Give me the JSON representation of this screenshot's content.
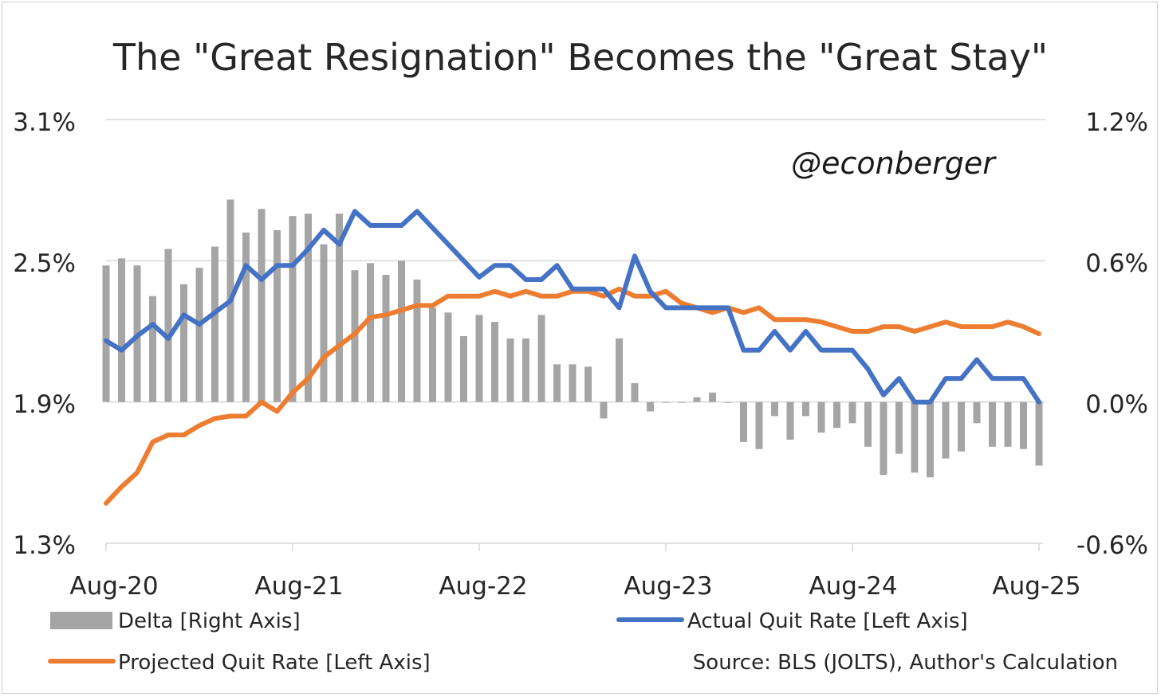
{
  "chart_data": {
    "type": "bar+line",
    "title": "The \"Great Resignation\" Becomes the \"Great Stay\"",
    "watermark": "@econberger",
    "source": "Source: BLS (JOLTS), Author's Calculation",
    "x_tick_labels": [
      "Aug-20",
      "Aug-21",
      "Aug-22",
      "Aug-23",
      "Aug-24",
      "Aug-25"
    ],
    "left_axis": {
      "ylim": [
        1.3,
        3.1
      ],
      "tick_labels": [
        "3.1%",
        "2.5%",
        "1.9%",
        "1.3%"
      ]
    },
    "right_axis": {
      "ylim": [
        -0.6,
        1.2
      ],
      "tick_labels": [
        "1.2%",
        "0.6%",
        "0.0%",
        "-0.6%"
      ]
    },
    "categories": [
      "Aug-20",
      "Sep-20",
      "Oct-20",
      "Nov-20",
      "Dec-20",
      "Jan-21",
      "Feb-21",
      "Mar-21",
      "Apr-21",
      "May-21",
      "Jun-21",
      "Jul-21",
      "Aug-21",
      "Sep-21",
      "Oct-21",
      "Nov-21",
      "Dec-21",
      "Jan-22",
      "Feb-22",
      "Mar-22",
      "Apr-22",
      "May-22",
      "Jun-22",
      "Jul-22",
      "Aug-22",
      "Sep-22",
      "Oct-22",
      "Nov-22",
      "Dec-22",
      "Jan-23",
      "Feb-23",
      "Mar-23",
      "Apr-23",
      "May-23",
      "Jun-23",
      "Jul-23",
      "Aug-23",
      "Sep-23",
      "Oct-23",
      "Nov-23",
      "Dec-23",
      "Jan-24",
      "Feb-24",
      "Mar-24",
      "Apr-24",
      "May-24",
      "Jun-24",
      "Jul-24",
      "Aug-24",
      "Sep-24",
      "Oct-24",
      "Nov-24",
      "Dec-24",
      "Jan-25",
      "Feb-25",
      "Mar-25",
      "Apr-25",
      "May-25",
      "Jun-25",
      "Jul-25",
      "Aug-25"
    ],
    "series": [
      {
        "name": "Delta [Right Axis]",
        "axis": "right",
        "kind": "bar",
        "color": "#a5a5a5",
        "values": [
          0.58,
          0.61,
          0.58,
          0.45,
          0.65,
          0.5,
          0.57,
          0.66,
          0.86,
          0.72,
          0.82,
          0.73,
          0.79,
          0.8,
          0.67,
          0.8,
          0.56,
          0.59,
          0.54,
          0.6,
          0.52,
          0.4,
          0.38,
          0.28,
          0.37,
          0.34,
          0.27,
          0.27,
          0.37,
          0.16,
          0.16,
          0.15,
          -0.07,
          0.27,
          0.08,
          -0.04,
          0.0,
          0.0,
          0.02,
          0.04,
          0.0,
          -0.17,
          -0.2,
          -0.06,
          -0.16,
          -0.06,
          -0.13,
          -0.11,
          -0.09,
          -0.19,
          -0.31,
          -0.22,
          -0.3,
          -0.32,
          -0.24,
          -0.21,
          -0.09,
          -0.19,
          -0.19,
          -0.2,
          -0.27
        ]
      },
      {
        "name": "Actual Quit Rate [Left Axis]",
        "axis": "left",
        "kind": "line",
        "color": "#4472c4",
        "values": [
          2.16,
          2.12,
          2.18,
          2.23,
          2.17,
          2.27,
          2.23,
          2.28,
          2.33,
          2.48,
          2.42,
          2.48,
          2.48,
          2.55,
          2.63,
          2.57,
          2.71,
          2.65,
          2.65,
          2.65,
          2.71,
          2.64,
          2.57,
          2.5,
          2.43,
          2.48,
          2.48,
          2.42,
          2.42,
          2.48,
          2.38,
          2.38,
          2.38,
          2.3,
          2.52,
          2.37,
          2.3,
          2.3,
          2.3,
          2.3,
          2.3,
          2.12,
          2.12,
          2.2,
          2.12,
          2.2,
          2.12,
          2.12,
          2.12,
          2.04,
          1.93,
          2.0,
          1.9,
          1.9,
          2.0,
          2.0,
          2.08,
          2.0,
          2.0,
          2.0,
          1.9
        ]
      },
      {
        "name": "Projected Quit Rate [Left Axis]",
        "axis": "left",
        "kind": "line",
        "color": "#ed7d31",
        "values": [
          1.47,
          1.54,
          1.6,
          1.73,
          1.76,
          1.76,
          1.8,
          1.83,
          1.84,
          1.84,
          1.9,
          1.86,
          1.94,
          2.0,
          2.09,
          2.14,
          2.19,
          2.26,
          2.27,
          2.29,
          2.31,
          2.31,
          2.35,
          2.35,
          2.35,
          2.37,
          2.35,
          2.37,
          2.35,
          2.35,
          2.37,
          2.37,
          2.35,
          2.38,
          2.35,
          2.35,
          2.37,
          2.32,
          2.3,
          2.28,
          2.3,
          2.28,
          2.3,
          2.25,
          2.25,
          2.25,
          2.24,
          2.22,
          2.2,
          2.2,
          2.22,
          2.22,
          2.2,
          2.22,
          2.24,
          2.22,
          2.22,
          2.22,
          2.24,
          2.22,
          2.19
        ]
      }
    ]
  }
}
